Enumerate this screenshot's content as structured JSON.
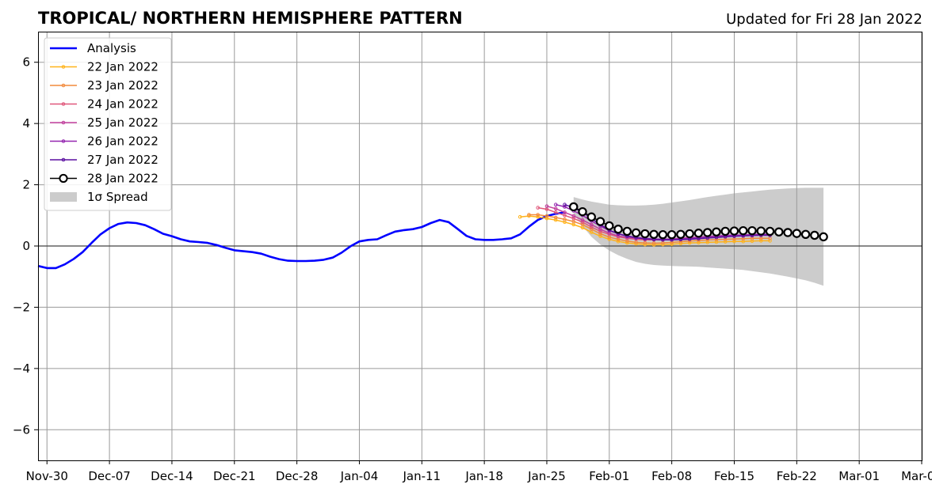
{
  "chart_data": {
    "type": "line",
    "title": "TROPICAL/ NORTHERN HEMISPHERE PATTERN",
    "subtitle": "Updated for Fri 28 Jan 2022",
    "xlabel": "",
    "ylabel": "",
    "x_ticks": [
      "Nov-30",
      "Dec-07",
      "Dec-14",
      "Dec-21",
      "Dec-28",
      "Jan-04",
      "Jan-11",
      "Jan-18",
      "Jan-25",
      "Feb-01",
      "Feb-08",
      "Feb-15",
      "Feb-22",
      "Mar-01",
      "Mar-08"
    ],
    "y_ticks": [
      "−6",
      "−4",
      "−2",
      "0",
      "2",
      "4",
      "6"
    ],
    "x_day_range": [
      -1,
      98
    ],
    "ylim": [
      -7,
      7
    ],
    "grid": true,
    "legend_position": "top-left",
    "analysis": {
      "name": "Analysis",
      "color": "#0000ff",
      "start_day": -1,
      "values": [
        -0.65,
        -0.72,
        -0.72,
        -0.6,
        -0.42,
        -0.2,
        0.1,
        0.38,
        0.58,
        0.72,
        0.77,
        0.75,
        0.68,
        0.55,
        0.4,
        0.32,
        0.22,
        0.15,
        0.13,
        0.1,
        0.03,
        -0.06,
        -0.14,
        -0.17,
        -0.2,
        -0.25,
        -0.35,
        -0.43,
        -0.48,
        -0.49,
        -0.49,
        -0.48,
        -0.45,
        -0.38,
        -0.22,
        -0.01,
        0.15,
        0.2,
        0.22,
        0.35,
        0.47,
        0.52,
        0.55,
        0.62,
        0.75,
        0.85,
        0.78,
        0.56,
        0.33,
        0.22,
        0.2,
        0.2,
        0.22,
        0.25,
        0.38,
        0.63,
        0.85,
        0.98,
        1.05,
        1.1
      ]
    },
    "forecasts": [
      {
        "name": "22 Jan 2022",
        "color": "#ffb31a",
        "start_day": 53,
        "values": [
          0.95,
          0.98,
          0.95,
          0.9,
          0.85,
          0.78,
          0.7,
          0.6,
          0.45,
          0.32,
          0.22,
          0.15,
          0.1,
          0.07,
          0.05,
          0.04,
          0.05,
          0.06,
          0.08,
          0.1,
          0.11,
          0.12,
          0.13,
          0.14,
          0.15,
          0.15,
          0.16,
          0.17,
          0.17
        ]
      },
      {
        "name": "23 Jan 2022",
        "color": "#f28a3c",
        "start_day": 54,
        "values": [
          1.02,
          1.02,
          0.98,
          0.93,
          0.87,
          0.8,
          0.7,
          0.55,
          0.4,
          0.29,
          0.22,
          0.16,
          0.12,
          0.1,
          0.09,
          0.1,
          0.12,
          0.14,
          0.16,
          0.18,
          0.2,
          0.21,
          0.22,
          0.23,
          0.24,
          0.25,
          0.25,
          0.25
        ]
      },
      {
        "name": "24 Jan 2022",
        "color": "#e0577a",
        "start_day": 55,
        "values": [
          1.25,
          1.2,
          1.1,
          1.0,
          0.9,
          0.78,
          0.62,
          0.48,
          0.38,
          0.3,
          0.25,
          0.22,
          0.2,
          0.2,
          0.2,
          0.22,
          0.24,
          0.26,
          0.28,
          0.3,
          0.31,
          0.32,
          0.33,
          0.34,
          0.35,
          0.35,
          0.35
        ]
      },
      {
        "name": "25 Jan 2022",
        "color": "#c13d9c",
        "start_day": 56,
        "values": [
          1.3,
          1.22,
          1.1,
          0.98,
          0.85,
          0.7,
          0.55,
          0.42,
          0.33,
          0.28,
          0.25,
          0.23,
          0.22,
          0.22,
          0.23,
          0.25,
          0.27,
          0.29,
          0.31,
          0.33,
          0.34,
          0.35,
          0.36,
          0.37,
          0.38,
          0.38
        ]
      },
      {
        "name": "26 Jan 2022",
        "color": "#9426b0",
        "start_day": 57,
        "values": [
          1.35,
          1.28,
          1.15,
          1.0,
          0.82,
          0.65,
          0.5,
          0.4,
          0.33,
          0.28,
          0.25,
          0.23,
          0.22,
          0.22,
          0.23,
          0.25,
          0.27,
          0.3,
          0.32,
          0.34,
          0.35,
          0.36,
          0.37,
          0.38,
          0.38
        ]
      },
      {
        "name": "27 Jan 2022",
        "color": "#5a0fa0",
        "start_day": 58,
        "values": [
          1.35,
          1.25,
          1.1,
          0.9,
          0.7,
          0.52,
          0.4,
          0.32,
          0.27,
          0.23,
          0.21,
          0.2,
          0.2,
          0.21,
          0.22,
          0.24,
          0.26,
          0.28,
          0.3,
          0.32,
          0.33,
          0.34,
          0.35,
          0.35
        ]
      }
    ],
    "current_forecast": {
      "name": "28 Jan 2022",
      "color": "#000000",
      "marker_fill": "#ffffff",
      "start_day": 59,
      "values": [
        1.28,
        1.12,
        0.95,
        0.8,
        0.66,
        0.55,
        0.48,
        0.43,
        0.4,
        0.38,
        0.37,
        0.37,
        0.38,
        0.4,
        0.42,
        0.44,
        0.46,
        0.48,
        0.49,
        0.5,
        0.5,
        0.49,
        0.48,
        0.46,
        0.44,
        0.41,
        0.38,
        0.35,
        0.3
      ]
    },
    "spread": {
      "name": "1σ Spread",
      "color": "#cccccc",
      "start_day": 59,
      "upper": [
        1.6,
        1.52,
        1.45,
        1.4,
        1.35,
        1.33,
        1.32,
        1.32,
        1.33,
        1.35,
        1.38,
        1.42,
        1.46,
        1.5,
        1.55,
        1.6,
        1.64,
        1.68,
        1.72,
        1.75,
        1.78,
        1.81,
        1.84,
        1.86,
        1.88,
        1.89,
        1.9,
        1.9,
        1.9
      ],
      "lower": [
        1.05,
        0.65,
        0.3,
        0.05,
        -0.15,
        -0.3,
        -0.42,
        -0.52,
        -0.58,
        -0.62,
        -0.64,
        -0.65,
        -0.66,
        -0.67,
        -0.68,
        -0.7,
        -0.72,
        -0.74,
        -0.76,
        -0.78,
        -0.82,
        -0.86,
        -0.9,
        -0.95,
        -1.0,
        -1.06,
        -1.12,
        -1.2,
        -1.3
      ]
    }
  }
}
